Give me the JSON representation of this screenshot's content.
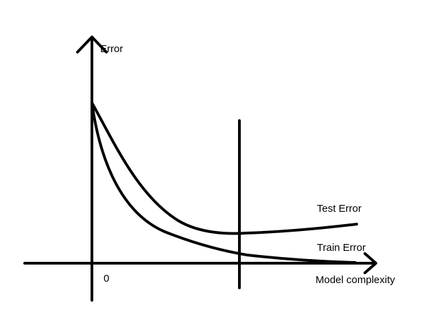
{
  "diagram": {
    "y_axis_label": "Error",
    "x_axis_label": "Model complexity",
    "origin_label": "0",
    "curves": {
      "test": "Test Error",
      "train": "Train Error"
    }
  },
  "colors": {
    "ink": "#000000",
    "background": "#ffffff"
  }
}
